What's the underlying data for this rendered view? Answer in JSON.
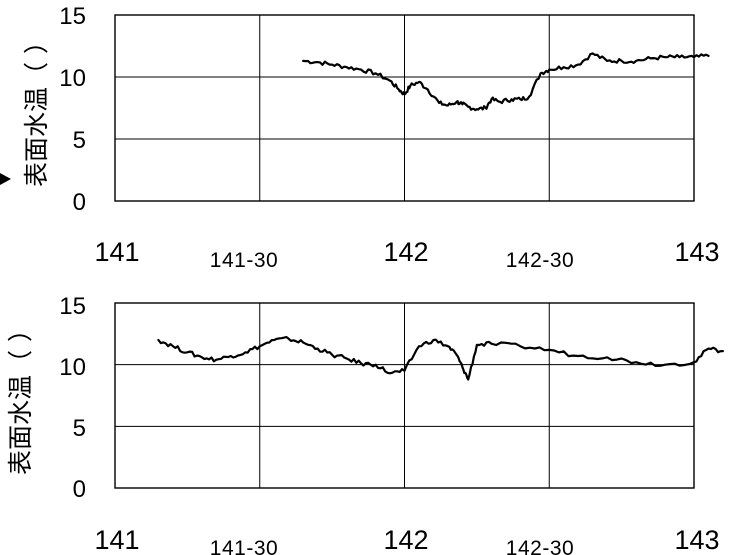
{
  "chart_data": [
    {
      "type": "line",
      "ylabel": "表面水温（ ）",
      "ylim": [
        0,
        15
      ],
      "yticks": [
        "0",
        "5",
        "10",
        "15"
      ],
      "xlim": [
        141,
        143
      ],
      "xtick_labels": [
        "141",
        "141-30",
        "142",
        "142-30",
        "143"
      ],
      "grid": true,
      "series": [
        {
          "x": [
            141.65,
            141.7,
            141.75,
            141.8,
            141.85,
            141.9,
            141.95,
            141.98,
            142.0,
            142.02,
            142.05,
            142.08,
            142.12,
            142.15,
            142.18,
            142.2,
            142.22,
            142.25,
            142.28,
            142.3,
            142.33,
            142.37,
            142.4,
            142.43,
            142.47,
            142.5,
            142.55,
            142.6,
            142.65,
            142.7,
            142.75,
            142.8,
            142.85,
            142.9,
            142.95,
            143.0,
            143.05
          ],
          "y": [
            11.3,
            11.2,
            11.0,
            10.8,
            10.6,
            10.3,
            9.7,
            9.0,
            8.6,
            9.3,
            9.6,
            9.0,
            7.9,
            7.7,
            8.0,
            7.8,
            7.6,
            7.4,
            7.5,
            8.2,
            8.0,
            8.2,
            8.2,
            8.4,
            10.3,
            10.6,
            10.8,
            11.0,
            11.9,
            11.3,
            11.3,
            11.3,
            11.5,
            11.6,
            11.6,
            11.6,
            11.7
          ]
        }
      ]
    },
    {
      "type": "line",
      "ylabel": "表面水温（ ）",
      "ylim": [
        0,
        15
      ],
      "yticks": [
        "0",
        "5",
        "10",
        "15"
      ],
      "xlim": [
        141,
        143
      ],
      "xtick_labels": [
        "141",
        "141-30",
        "142",
        "142-30",
        "143"
      ],
      "grid": true,
      "series": [
        {
          "x": [
            141.15,
            141.2,
            141.25,
            141.3,
            141.35,
            141.4,
            141.45,
            141.5,
            141.55,
            141.6,
            141.65,
            141.7,
            141.75,
            141.8,
            141.85,
            141.9,
            141.95,
            142.0,
            142.05,
            142.1,
            142.15,
            142.18,
            142.2,
            142.22,
            142.25,
            142.3,
            142.4,
            142.5,
            142.6,
            142.7,
            142.8,
            142.9,
            143.0,
            143.05,
            143.1
          ],
          "y": [
            12.0,
            11.5,
            11.0,
            10.6,
            10.4,
            10.7,
            11.0,
            11.5,
            12.0,
            12.1,
            11.8,
            11.3,
            10.8,
            10.5,
            10.1,
            10.0,
            9.3,
            9.5,
            11.5,
            12.0,
            11.5,
            10.8,
            9.8,
            8.8,
            11.6,
            11.7,
            11.5,
            11.2,
            10.7,
            10.6,
            10.2,
            10.0,
            10.2,
            11.3,
            11.1
          ]
        }
      ]
    }
  ]
}
